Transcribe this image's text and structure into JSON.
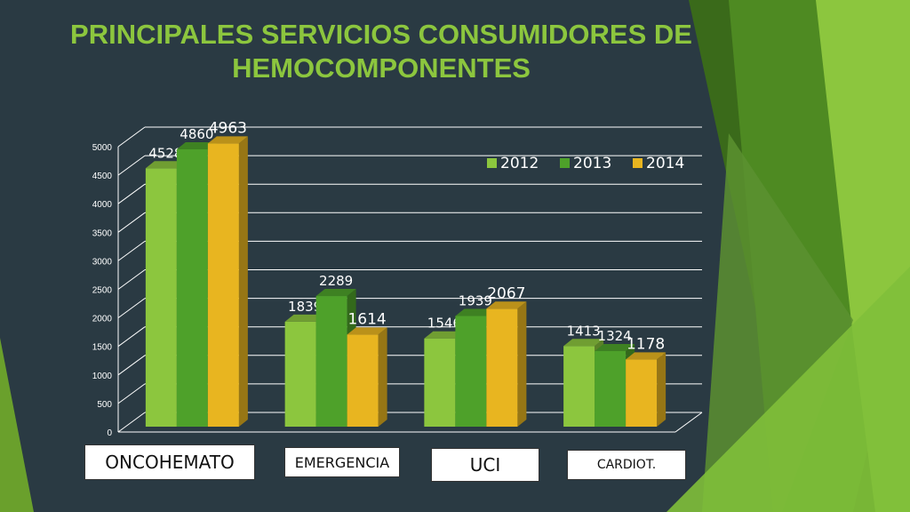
{
  "colors": {
    "background": "#2a3a43",
    "title": "#8cc63e",
    "series": [
      "#8cc63e",
      "#4ea12a",
      "#e8b520"
    ]
  },
  "chart_data": {
    "type": "bar",
    "title": "PRINCIPALES SERVICIOS CONSUMIDORES DE HEMOCOMPONENTES",
    "title_lines": [
      "PRINCIPALES SERVICIOS CONSUMIDORES DE",
      "HEMOCOMPONENTES"
    ],
    "categories": [
      "ONCOHEMATO",
      "EMERGENCIA",
      "UCI",
      "CARDIOT."
    ],
    "series": [
      {
        "name": "2012",
        "values": [
          4528,
          1839,
          1546,
          1413
        ]
      },
      {
        "name": "2013",
        "values": [
          4860,
          2289,
          1939,
          1324
        ]
      },
      {
        "name": "2014",
        "values": [
          4963,
          1614,
          2067,
          1178
        ]
      }
    ],
    "yticks": [
      "0",
      "500",
      "1000",
      "1500",
      "2000",
      "2500",
      "3000",
      "3500",
      "4000",
      "4500",
      "5000"
    ],
    "ylim": [
      0,
      5000
    ],
    "grid": true,
    "legend_position": "top-right",
    "data_labels": true
  }
}
